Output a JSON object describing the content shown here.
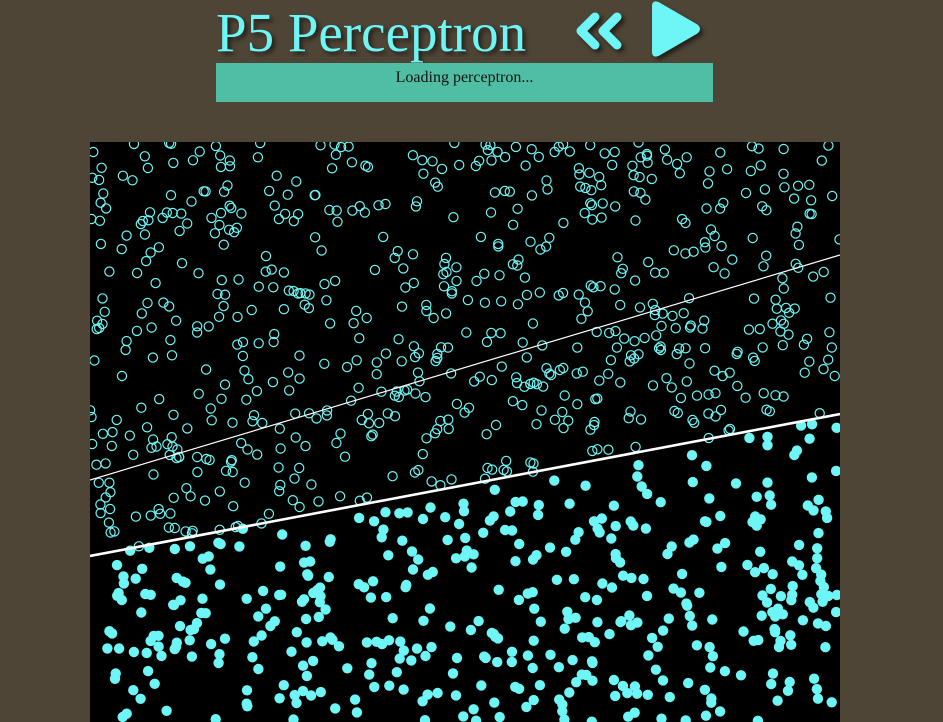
{
  "header": {
    "title": "P5 Perceptron",
    "rewind_icon": "double-chevron-left-icon",
    "play_icon": "play-icon"
  },
  "status": {
    "text": "Loading perceptron..."
  },
  "colors": {
    "background": "#4e4536",
    "accent": "#6ef5f5",
    "status_bar": "#4fbea4",
    "canvas": "#000000",
    "line": "#ffffff"
  }
}
